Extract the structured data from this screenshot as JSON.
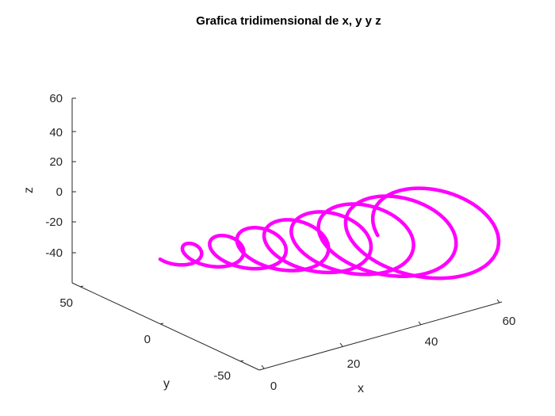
{
  "chart_data": {
    "type": "line3d",
    "title": "Grafica tridimensional de x, y y z",
    "xlabel": "x",
    "ylabel": "y",
    "zlabel": "z",
    "xticks": [
      "0",
      "20",
      "40",
      "60"
    ],
    "yticks": [
      "50",
      "0",
      "-50"
    ],
    "zticks": [
      "60",
      "40",
      "20",
      "0",
      "-20",
      "-40"
    ],
    "xlim": [
      0,
      65
    ],
    "ylim": [
      -65,
      65
    ],
    "zlim": [
      -60,
      65
    ],
    "grid": false,
    "series": [
      {
        "color": "#FF00FF",
        "curve": "conical spiral: x = t, y = t*cos(t), z = t*sin(t)",
        "t_range": [
          10,
          60
        ]
      }
    ]
  }
}
